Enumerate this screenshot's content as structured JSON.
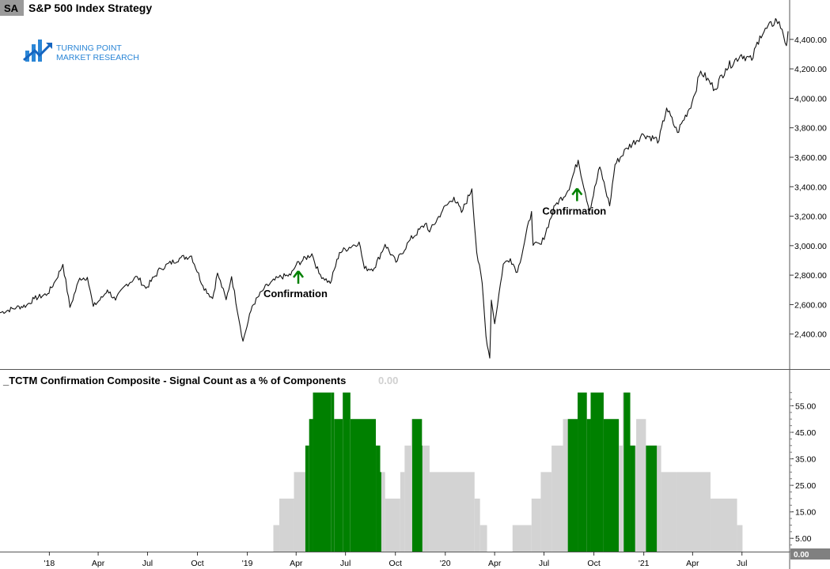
{
  "header": {
    "symbol": "SA",
    "title": "S&P 500 Index  Strategy"
  },
  "logo": {
    "icon": "bar-chart-arrow-icon",
    "line1": "TURNING POINT",
    "line2": "MARKET RESEARCH",
    "color": "#2b86d6"
  },
  "lower_panel": {
    "title": "_TCTM Confirmation Composite - Signal Count as a % of Components",
    "last_value": "0.00",
    "last_value_badge": "0.00"
  },
  "colors": {
    "price_line": "#111111",
    "confirmation": "#008000",
    "signal_gray": "#d3d3d3",
    "annotation_arrow": "#008000"
  },
  "chart_data": [
    {
      "type": "line",
      "series": [
        {
          "values": [
            [
              "2017-10-02",
              2545
            ],
            [
              "2017-11-01",
              2580
            ],
            [
              "2017-11-20",
              2595
            ],
            [
              "2017-12-04",
              2640
            ],
            [
              "2017-12-29",
              2674
            ],
            [
              "2018-01-12",
              2760
            ],
            [
              "2018-01-26",
              2873
            ],
            [
              "2018-02-08",
              2581
            ],
            [
              "2018-02-26",
              2780
            ],
            [
              "2018-03-12",
              2785
            ],
            [
              "2018-03-23",
              2588
            ],
            [
              "2018-04-09",
              2650
            ],
            [
              "2018-04-18",
              2700
            ],
            [
              "2018-05-03",
              2630
            ],
            [
              "2018-05-21",
              2730
            ],
            [
              "2018-06-12",
              2790
            ],
            [
              "2018-06-28",
              2710
            ],
            [
              "2018-07-25",
              2845
            ],
            [
              "2018-08-29",
              2915
            ],
            [
              "2018-09-20",
              2930
            ],
            [
              "2018-10-11",
              2728
            ],
            [
              "2018-10-29",
              2641
            ],
            [
              "2018-11-07",
              2814
            ],
            [
              "2018-11-23",
              2633
            ],
            [
              "2018-12-03",
              2790
            ],
            [
              "2018-12-24",
              2351
            ],
            [
              "2019-01-10",
              2590
            ],
            [
              "2019-02-01",
              2710
            ],
            [
              "2019-02-28",
              2785
            ],
            [
              "2019-03-22",
              2800
            ],
            [
              "2019-04-01",
              2870
            ],
            [
              "2019-04-30",
              2945
            ],
            [
              "2019-05-13",
              2812
            ],
            [
              "2019-06-03",
              2744
            ],
            [
              "2019-06-20",
              2954
            ],
            [
              "2019-07-26",
              3025
            ],
            [
              "2019-08-05",
              2844
            ],
            [
              "2019-08-23",
              2847
            ],
            [
              "2019-09-12",
              3009
            ],
            [
              "2019-10-02",
              2887
            ],
            [
              "2019-10-28",
              3039
            ],
            [
              "2019-11-27",
              3153
            ],
            [
              "2019-12-03",
              3093
            ],
            [
              "2019-12-27",
              3240
            ],
            [
              "2020-01-17",
              3329
            ],
            [
              "2020-01-31",
              3225
            ],
            [
              "2020-02-19",
              3386
            ],
            [
              "2020-02-28",
              2954
            ],
            [
              "2020-03-09",
              2746
            ],
            [
              "2020-03-16",
              2386
            ],
            [
              "2020-03-23",
              2237
            ],
            [
              "2020-03-26",
              2630
            ],
            [
              "2020-04-01",
              2470
            ],
            [
              "2020-04-17",
              2875
            ],
            [
              "2020-04-30",
              2912
            ],
            [
              "2020-05-13",
              2820
            ],
            [
              "2020-06-08",
              3232
            ],
            [
              "2020-06-11",
              3002
            ],
            [
              "2020-06-26",
              3009
            ],
            [
              "2020-07-22",
              3276
            ],
            [
              "2020-08-14",
              3373
            ],
            [
              "2020-09-02",
              3580
            ],
            [
              "2020-09-23",
              3237
            ],
            [
              "2020-10-12",
              3534
            ],
            [
              "2020-10-30",
              3270
            ],
            [
              "2020-11-09",
              3550
            ],
            [
              "2020-12-01",
              3662
            ],
            [
              "2020-12-31",
              3756
            ],
            [
              "2021-01-29",
              3714
            ],
            [
              "2021-02-12",
              3934
            ],
            [
              "2021-03-04",
              3768
            ],
            [
              "2021-03-31",
              3973
            ],
            [
              "2021-04-16",
              4185
            ],
            [
              "2021-05-12",
              4063
            ],
            [
              "2021-06-01",
              4202
            ],
            [
              "2021-06-30",
              4297
            ],
            [
              "2021-07-19",
              4258
            ],
            [
              "2021-08-03",
              4424
            ],
            [
              "2021-08-31",
              4523
            ],
            [
              "2021-09-02",
              4537
            ],
            [
              "2021-09-13",
              4468
            ],
            [
              "2021-09-21",
              4357
            ],
            [
              "2021-09-24",
              4455
            ]
          ]
        }
      ],
      "annotations": [
        {
          "date": "2019-04-05",
          "value": 2860,
          "label": "Confirmation"
        },
        {
          "date": "2020-08-31",
          "value": 3420,
          "label": "Confirmation"
        }
      ],
      "y_ticks": [
        "2,400.00",
        "2,600.00",
        "2,800.00",
        "3,000.00",
        "3,200.00",
        "3,400.00",
        "3,600.00",
        "3,800.00",
        "4,000.00",
        "4,200.00",
        "4,400.00"
      ],
      "ylim": [
        2200,
        4560
      ]
    },
    {
      "type": "bar",
      "series": [
        {
          "name": "",
          "values": [
            [
              "2019-02-18",
              10
            ],
            [
              "2019-03-01",
              20
            ],
            [
              "2019-03-28",
              30
            ],
            [
              "2019-04-18",
              40
            ],
            [
              "2019-04-25",
              50
            ],
            [
              "2019-05-02",
              60
            ],
            [
              "2019-06-05",
              60
            ],
            [
              "2019-06-10",
              50
            ],
            [
              "2019-06-26",
              60
            ],
            [
              "2019-07-10",
              50
            ],
            [
              "2019-08-26",
              40
            ],
            [
              "2019-09-03",
              30
            ],
            [
              "2019-09-12",
              20
            ],
            [
              "2019-10-10",
              30
            ],
            [
              "2019-10-18",
              40
            ],
            [
              "2019-10-30",
              50
            ],
            [
              "2019-11-19",
              40
            ],
            [
              "2019-12-03",
              30
            ],
            [
              "2020-02-24",
              20
            ],
            [
              "2020-03-05",
              10
            ],
            [
              "2020-03-18",
              0
            ],
            [
              "2020-05-04",
              10
            ],
            [
              "2020-06-08",
              20
            ],
            [
              "2020-06-25",
              30
            ],
            [
              "2020-07-15",
              40
            ],
            [
              "2020-08-05",
              50
            ],
            [
              "2020-09-01",
              60
            ],
            [
              "2020-09-18",
              50
            ],
            [
              "2020-09-25",
              60
            ],
            [
              "2020-10-19",
              50
            ],
            [
              "2020-11-16",
              40
            ],
            [
              "2020-11-23",
              60
            ],
            [
              "2020-12-07",
              40
            ],
            [
              "2020-12-18",
              50
            ],
            [
              "2021-01-05",
              40
            ],
            [
              "2021-02-02",
              30
            ],
            [
              "2021-03-03",
              30
            ],
            [
              "2021-05-04",
              20
            ],
            [
              "2021-06-22",
              10
            ],
            [
              "2021-07-02",
              0
            ]
          ]
        }
      ],
      "confirmation_active": [
        [
          "2019-04-18",
          "2019-09-05"
        ],
        [
          "2019-11-01",
          "2019-11-20"
        ],
        [
          "2020-08-14",
          "2020-11-16"
        ],
        [
          "2020-11-25",
          "2020-12-16"
        ],
        [
          "2021-01-05",
          "2021-01-25"
        ]
      ],
      "y_ticks": [
        "5.00",
        "15.00",
        "25.00",
        "35.00",
        "45.00",
        "55.00"
      ],
      "ylim": [
        0,
        62
      ]
    }
  ],
  "x_axis": {
    "ticks": [
      {
        "date": "2018-01-01",
        "label": "'18"
      },
      {
        "date": "2018-04-01",
        "label": "Apr"
      },
      {
        "date": "2018-07-01",
        "label": "Jul"
      },
      {
        "date": "2018-10-01",
        "label": "Oct"
      },
      {
        "date": "2019-01-01",
        "label": "'19"
      },
      {
        "date": "2019-04-01",
        "label": "Apr"
      },
      {
        "date": "2019-07-01",
        "label": "Jul"
      },
      {
        "date": "2019-10-01",
        "label": "Oct"
      },
      {
        "date": "2020-01-01",
        "label": "'20"
      },
      {
        "date": "2020-04-01",
        "label": "Apr"
      },
      {
        "date": "2020-07-01",
        "label": "Jul"
      },
      {
        "date": "2020-10-01",
        "label": "Oct"
      },
      {
        "date": "2021-01-01",
        "label": "'21"
      },
      {
        "date": "2021-04-01",
        "label": "Apr"
      },
      {
        "date": "2021-07-01",
        "label": "Jul"
      }
    ]
  }
}
